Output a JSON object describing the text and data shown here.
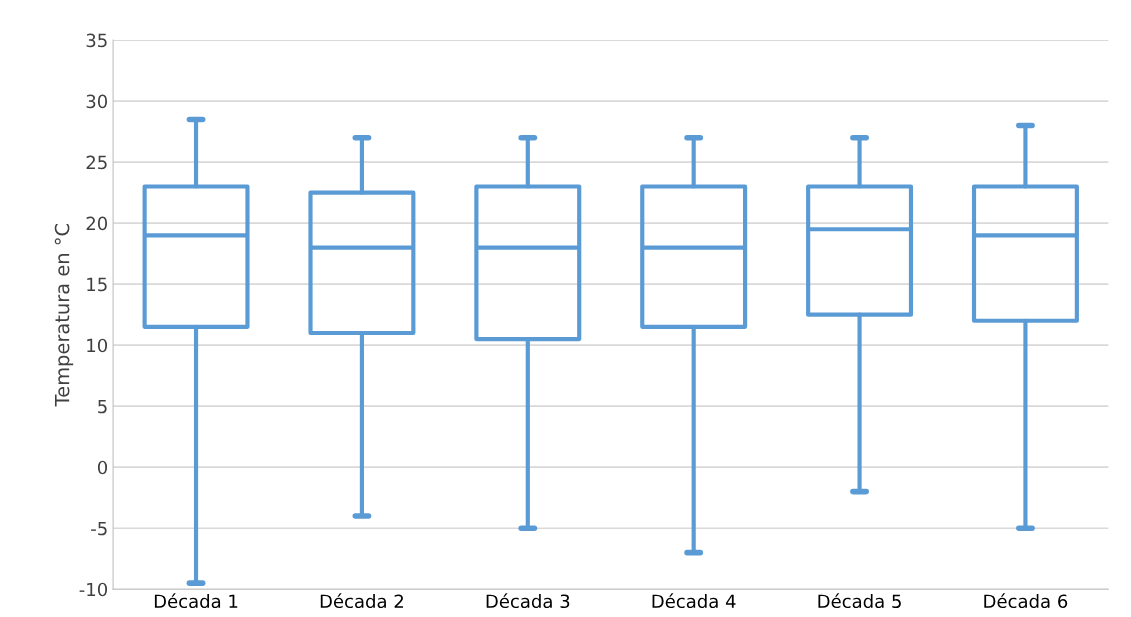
{
  "chart_data": {
    "type": "box",
    "ylabel": "Temperatura en °C",
    "categories": [
      "Década 1",
      "Década 2",
      "Década 3",
      "Década 4",
      "Década 5",
      "Década 6"
    ],
    "boxes": [
      {
        "low": -9.5,
        "q1": 11.5,
        "median": 19,
        "q3": 23,
        "high": 28.5
      },
      {
        "low": -4,
        "q1": 11,
        "median": 18,
        "q3": 22.5,
        "high": 27
      },
      {
        "low": -5,
        "q1": 10.5,
        "median": 18,
        "q3": 23,
        "high": 27
      },
      {
        "low": -7,
        "q1": 11.5,
        "median": 18,
        "q3": 23,
        "high": 27
      },
      {
        "low": -2,
        "q1": 12.5,
        "median": 19.5,
        "q3": 23,
        "high": 27
      },
      {
        "low": -5,
        "q1": 12,
        "median": 19,
        "q3": 23,
        "high": 28
      }
    ],
    "color": "#5b9bd5",
    "ylim": [
      -10,
      35
    ],
    "yticks": [
      -10,
      -5,
      0,
      5,
      10,
      15,
      20,
      25,
      30,
      35
    ],
    "grid": "y"
  }
}
